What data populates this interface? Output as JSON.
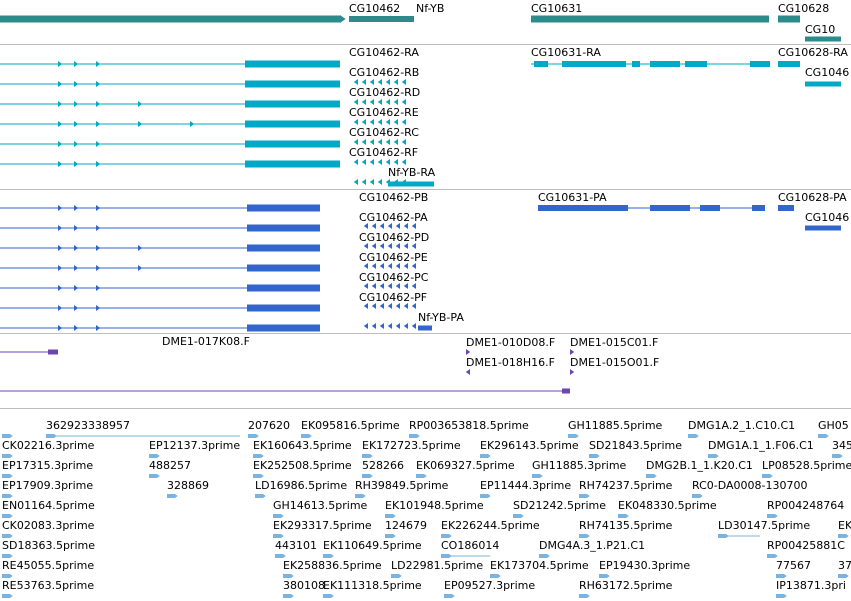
{
  "colors": {
    "gene": "#2e8b8b",
    "transcript": "#00a9c5",
    "protein": "#3366cc",
    "bac": "#6b46b0",
    "est": "#7ab3dd",
    "divider": "#bdbdbd"
  },
  "gene_track": {
    "labels": [
      "CG10462",
      "Nf-YB",
      "CG10631",
      "CG10628",
      "CG10"
    ]
  },
  "transcript_track": {
    "labels": [
      "CG10462-RA",
      "CG10462-RB",
      "CG10462-RD",
      "CG10462-RE",
      "CG10462-RC",
      "CG10462-RF",
      "Nf-YB-RA",
      "CG10631-RA",
      "CG10628-RA",
      "CG1046"
    ]
  },
  "protein_track": {
    "labels": [
      "CG10462-PB",
      "CG10462-PA",
      "CG10462-PD",
      "CG10462-PE",
      "CG10462-PC",
      "CG10462-PF",
      "Nf-YB-PA",
      "CG10631-PA",
      "CG10628-PA",
      "CG1046"
    ]
  },
  "bac_track": {
    "labels": [
      "DME1-017K08.F",
      "DME1-010D08.F",
      "DME1-015C01.F",
      "DME1-018H16.F",
      "DME1-015O01.F"
    ]
  },
  "est_track": {
    "labels": [
      "362923338957",
      "207620",
      "EK095816.5prime",
      "RP003653818.5prime",
      "GH11885.5prime",
      "DMG1A.2_1.C10.C1",
      "GH05",
      "CK02216.3prime",
      "EP12137.3prime",
      "EK160643.5prime",
      "EK172723.5prime",
      "EK296143.5prime",
      "SD21843.5prime",
      "DMG1A.1_1.F06.C1",
      "345",
      "EP17315.3prime",
      "488257",
      "EK252508.5prime",
      "528266",
      "EK069327.5prime",
      "GH11885.3prime",
      "DMG2B.1_1.K20.C1",
      "LP08528.5prime",
      "EP17909.3prime",
      "328869",
      "LD16986.5prime",
      "RH39849.5prime",
      "EP11444.3prime",
      "RH74237.5prime",
      "RC0-DA0008-130700",
      "EN01164.5prime",
      "GH14613.5prime",
      "EK101948.5prime",
      "SD21242.5prime",
      "EK048330.5prime",
      "RP004248764",
      "CK02083.3prime",
      "EK293317.5prime",
      "124679",
      "EK226244.5prime",
      "RH74135.5prime",
      "LD30147.5prime",
      "EK",
      "SD18363.5prime",
      "443101",
      "EK110649.5prime",
      "CO186014",
      "DMG4A.3_1.P21.C1",
      "RP00425881C",
      "RE45055.5prime",
      "EK258836.5prime",
      "LD22981.5prime",
      "EK173704.5prime",
      "EP19430.3prime",
      "77567",
      "37",
      "RE53763.5prime",
      "380108",
      "EK111318.5prime",
      "EP09527.3prime",
      "RH63172.5prime",
      "IP13871.3pri"
    ]
  }
}
